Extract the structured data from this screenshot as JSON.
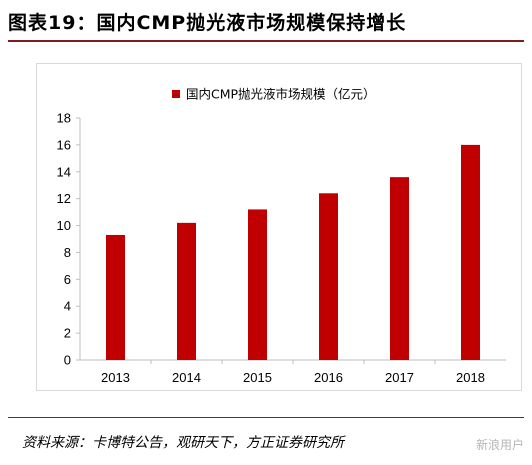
{
  "figure": {
    "title": "图表19：国内CMP抛光液市场规模保持增长",
    "source": "资料来源：卡博特公告，观研天下，方正证券研究所",
    "watermark": "新浪用户"
  },
  "colors": {
    "bar": "#c00000",
    "header_rule": "#7f1d1d",
    "axis": "#bfbfbf"
  },
  "chart_data": {
    "type": "bar",
    "categories": [
      "2013",
      "2014",
      "2015",
      "2016",
      "2017",
      "2018"
    ],
    "series": [
      {
        "name": "国内CMP抛光液市场规模（亿元）",
        "values": [
          9.3,
          10.2,
          11.2,
          12.4,
          13.6,
          16.0
        ]
      }
    ],
    "ylim": [
      0,
      18
    ],
    "yticks": [
      0,
      2,
      4,
      6,
      8,
      10,
      12,
      14,
      16,
      18
    ],
    "title": "",
    "xlabel": "",
    "ylabel": "",
    "legend": "top",
    "grid": false
  }
}
